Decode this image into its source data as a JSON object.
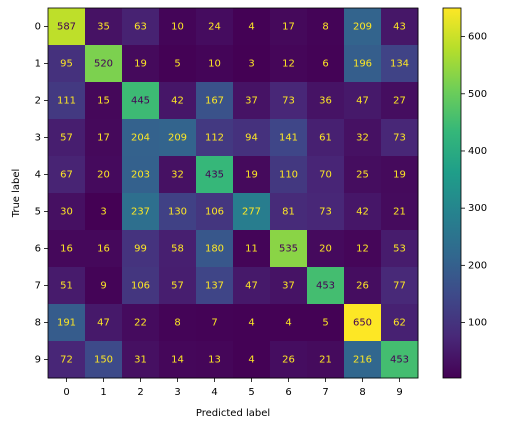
{
  "chart_data": {
    "type": "heatmap",
    "x_label": "Predicted label",
    "y_label": "True label",
    "x_categories": [
      "0",
      "1",
      "2",
      "3",
      "4",
      "5",
      "6",
      "7",
      "8",
      "9"
    ],
    "y_categories": [
      "0",
      "1",
      "2",
      "3",
      "4",
      "5",
      "6",
      "7",
      "8",
      "9"
    ],
    "values": [
      [
        587,
        35,
        63,
        10,
        24,
        4,
        17,
        8,
        209,
        43
      ],
      [
        95,
        520,
        19,
        5,
        10,
        3,
        12,
        6,
        196,
        134
      ],
      [
        111,
        15,
        445,
        42,
        167,
        37,
        73,
        36,
        47,
        27
      ],
      [
        57,
        17,
        204,
        209,
        112,
        94,
        141,
        61,
        32,
        73
      ],
      [
        67,
        20,
        203,
        32,
        435,
        19,
        110,
        70,
        25,
        19
      ],
      [
        30,
        3,
        237,
        130,
        106,
        277,
        81,
        73,
        42,
        21
      ],
      [
        16,
        16,
        99,
        58,
        180,
        11,
        535,
        20,
        12,
        53
      ],
      [
        51,
        9,
        106,
        57,
        137,
        47,
        37,
        453,
        26,
        77
      ],
      [
        191,
        47,
        22,
        8,
        7,
        4,
        4,
        5,
        650,
        62
      ],
      [
        72,
        150,
        31,
        14,
        13,
        4,
        26,
        21,
        216,
        453
      ]
    ],
    "clim": [
      3,
      650
    ],
    "cticks": [
      100,
      200,
      300,
      400,
      500,
      600
    ],
    "colormap": [
      "#440154",
      "#482878",
      "#3e4989",
      "#31688e",
      "#26828e",
      "#1f9e89",
      "#35b779",
      "#6ece58",
      "#b5de2b",
      "#fde725"
    ]
  }
}
